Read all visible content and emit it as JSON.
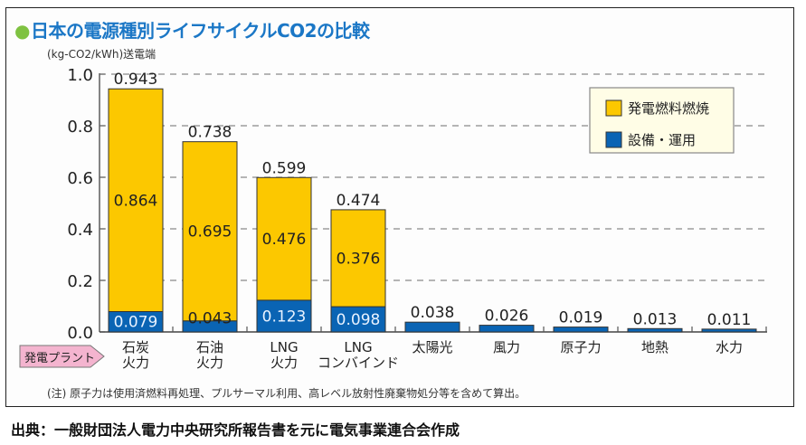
{
  "title": "日本の電源種別ライフサイクルCO2の比較",
  "title_dot_icon": "●",
  "unit_label": "(kg-CO2/kWh)送電端",
  "note": "(注) 原子力は使用済燃料再処理、プルサーマル利用、高レベル放射性廃棄物処分等を含めて算出。",
  "source": "出典：一般財団法人電力中央研究所報告書を元に電気事業連合会作成",
  "plant_label": "発電プラント",
  "colors": {
    "fuel": "#fcc800",
    "equipment": "#0a64b4",
    "title": "#1b77c6",
    "title_dot": "#7fc241",
    "legend_bg": "#fffde6",
    "plant_label_bg": "#f4b4cf"
  },
  "chart_data": {
    "type": "bar",
    "stacked": true,
    "title": "日本の電源種別ライフサイクルCO2の比較",
    "ylabel": "(kg-CO2/kWh)送電端",
    "xlabel": "発電プラント",
    "ylim": [
      0,
      1.0
    ],
    "yticks": [
      "0.0",
      "0.2",
      "0.4",
      "0.6",
      "0.8",
      "1.0"
    ],
    "ytick_values": [
      0,
      0.2,
      0.4,
      0.6,
      0.8,
      1.0
    ],
    "grid": true,
    "legend_position": "top-right",
    "categories": [
      [
        "石炭",
        "火力"
      ],
      [
        "石油",
        "火力"
      ],
      [
        "LNG",
        "火力"
      ],
      [
        "LNG",
        "コンバインド"
      ],
      [
        "太陽光"
      ],
      [
        "風力"
      ],
      [
        "原子力"
      ],
      [
        "地熱"
      ],
      [
        "水力"
      ]
    ],
    "series": [
      {
        "name": "設備・運用",
        "key": "equipment",
        "values": [
          0.079,
          0.043,
          0.123,
          0.098,
          0.038,
          0.026,
          0.019,
          0.013,
          0.011
        ],
        "labels": [
          "0.079",
          "0.043",
          "0.123",
          "0.098",
          null,
          null,
          null,
          null,
          null
        ]
      },
      {
        "name": "発電燃料燃焼",
        "key": "fuel",
        "values": [
          0.864,
          0.695,
          0.476,
          0.376,
          0,
          0,
          0,
          0,
          0
        ],
        "labels": [
          "0.864",
          "0.695",
          "0.476",
          "0.376",
          null,
          null,
          null,
          null,
          null
        ]
      }
    ],
    "totals": [
      0.943,
      0.738,
      0.599,
      0.474,
      0.038,
      0.026,
      0.019,
      0.013,
      0.011
    ],
    "total_labels": [
      "0.943",
      "0.738",
      "0.599",
      "0.474",
      "0.038",
      "0.026",
      "0.019",
      "0.013",
      "0.011"
    ],
    "legend": [
      {
        "name": "発電燃料燃焼",
        "key": "fuel"
      },
      {
        "name": "設備・運用",
        "key": "equipment"
      }
    ]
  }
}
